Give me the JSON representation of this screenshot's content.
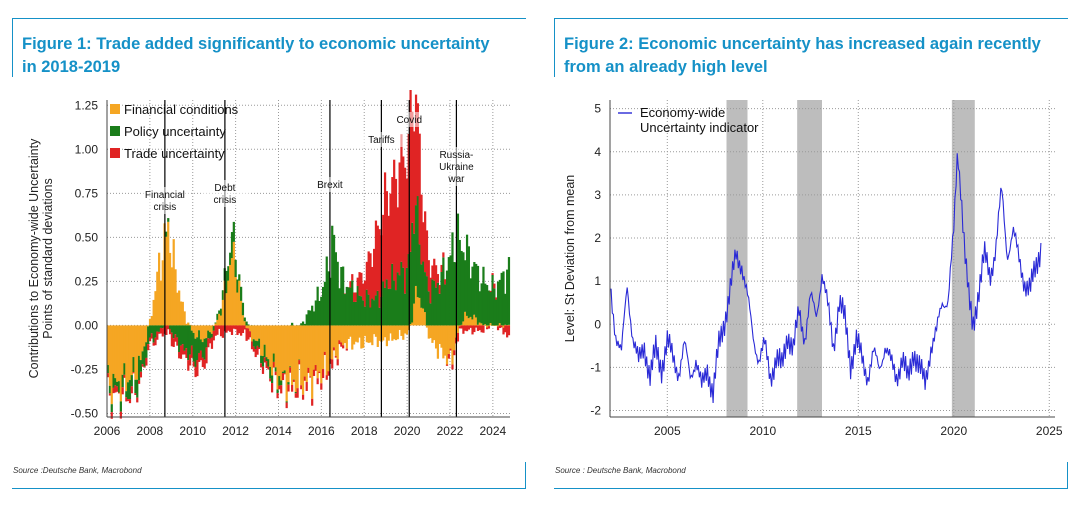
{
  "figures": [
    {
      "title": "Figure 1: Trade added significantly to economic uncertainty in 2018-2019",
      "source": "Source :Deutsche Bank, Macrobond",
      "colors": {
        "Financial conditions": "#f5a623",
        "Policy uncertainty": "#1a7d1a",
        "Trade uncertainty": "#e02424",
        "events": "#000000"
      }
    },
    {
      "title": "Figure 2: Economic uncertainty has increased again recently from an already high level",
      "source": "Source : Deutsche Bank, Macrobond",
      "colors": {
        "line": "#2a2ad6",
        "recession_band": "#bdbdbd"
      }
    }
  ],
  "chart_data": [
    {
      "type": "area",
      "stacked": true,
      "title": "",
      "xlabel": "",
      "ylabel": "Contributions to Economy-wide Uncertainty\nPoints of standard deviations",
      "xlim": [
        2006,
        2024.8
      ],
      "ylim": [
        -0.52,
        1.28
      ],
      "xticks": [
        "2006",
        "2008",
        "2010",
        "2012",
        "2014",
        "2016",
        "2018",
        "2020",
        "2022",
        "2024"
      ],
      "yticks": [
        "1.25",
        "1.00",
        "0.75",
        "0.50",
        "0.25",
        "0.00",
        "-0.25",
        "-0.50"
      ],
      "legend_position": "top-left",
      "grid": true,
      "x": [
        2006.0,
        2006.5,
        2007.0,
        2007.5,
        2008.0,
        2008.3,
        2008.6,
        2008.8,
        2009.0,
        2009.3,
        2009.6,
        2010.0,
        2010.5,
        2011.0,
        2011.3,
        2011.6,
        2011.8,
        2012.0,
        2012.3,
        2012.6,
        2013.0,
        2013.5,
        2014.0,
        2014.5,
        2015.0,
        2015.5,
        2016.0,
        2016.3,
        2016.5,
        2016.8,
        2017.0,
        2017.5,
        2018.0,
        2018.5,
        2018.8,
        2019.0,
        2019.3,
        2019.6,
        2020.0,
        2020.2,
        2020.4,
        2020.7,
        2021.0,
        2021.5,
        2022.0,
        2022.3,
        2022.6,
        2023.0,
        2023.5,
        2024.0,
        2024.3,
        2024.6
      ],
      "series": [
        {
          "name": "Financial conditions",
          "values": [
            -0.33,
            -0.33,
            -0.3,
            -0.22,
            0.05,
            0.28,
            0.45,
            0.55,
            0.4,
            0.2,
            0.05,
            -0.05,
            -0.08,
            0.0,
            0.1,
            0.28,
            0.4,
            0.3,
            0.05,
            -0.05,
            -0.1,
            -0.2,
            -0.3,
            -0.32,
            -0.32,
            -0.3,
            -0.26,
            -0.22,
            -0.18,
            -0.12,
            -0.1,
            -0.1,
            -0.1,
            -0.08,
            -0.1,
            -0.08,
            -0.08,
            -0.06,
            -0.05,
            0.05,
            0.2,
            0.1,
            -0.08,
            -0.15,
            -0.2,
            -0.05,
            0.05,
            0.05,
            0.0,
            0.0,
            0.0,
            0.0
          ]
        },
        {
          "name": "Policy uncertainty",
          "values": [
            -0.05,
            -0.05,
            -0.08,
            -0.1,
            -0.08,
            -0.05,
            0.0,
            0.02,
            -0.05,
            -0.1,
            -0.15,
            -0.15,
            -0.08,
            0.0,
            0.05,
            0.1,
            0.12,
            0.08,
            0.05,
            0.0,
            -0.05,
            -0.05,
            -0.03,
            0.0,
            0.0,
            0.1,
            0.2,
            0.35,
            0.5,
            0.3,
            0.25,
            0.18,
            0.15,
            0.15,
            0.18,
            0.25,
            0.25,
            0.3,
            0.3,
            0.55,
            0.45,
            0.25,
            0.2,
            0.25,
            0.4,
            0.5,
            0.4,
            0.3,
            0.25,
            0.2,
            0.25,
            0.3
          ]
        },
        {
          "name": "Trade uncertainty",
          "values": [
            -0.03,
            -0.03,
            -0.02,
            -0.02,
            -0.03,
            -0.03,
            -0.04,
            -0.04,
            -0.05,
            -0.05,
            -0.05,
            -0.06,
            -0.06,
            -0.05,
            -0.05,
            -0.04,
            -0.03,
            -0.04,
            -0.05,
            -0.05,
            -0.03,
            -0.03,
            -0.03,
            -0.03,
            -0.03,
            -0.03,
            -0.03,
            -0.03,
            -0.03,
            -0.02,
            -0.02,
            0.05,
            0.15,
            0.35,
            0.45,
            0.5,
            0.55,
            0.6,
            0.7,
            0.72,
            0.6,
            0.35,
            0.15,
            0.05,
            -0.03,
            -0.03,
            -0.03,
            -0.03,
            -0.03,
            0.02,
            -0.02,
            -0.05
          ]
        }
      ],
      "annotations": [
        {
          "x": 2008.7,
          "label": "Financial\ncrisis"
        },
        {
          "x": 2011.5,
          "label": "Debt\ncrisis"
        },
        {
          "x": 2016.4,
          "label": "Brexit"
        },
        {
          "x": 2018.8,
          "label": "Tariffs"
        },
        {
          "x": 2020.1,
          "label": "Covid"
        },
        {
          "x": 2022.3,
          "label": "Russia-\nUkraine\nwar"
        }
      ]
    },
    {
      "type": "line",
      "title": "",
      "xlabel": "",
      "ylabel": "Level: St Deviation from mean",
      "xlim": [
        2002,
        2025.3
      ],
      "ylim": [
        -2.15,
        5.2
      ],
      "xticks": [
        "2005",
        "2010",
        "2015",
        "2020",
        "2025"
      ],
      "yticks": [
        "5",
        "4",
        "3",
        "2",
        "1",
        "0",
        "-1",
        "-2"
      ],
      "legend_position": "top-left",
      "grid": true,
      "shaded_ranges": [
        [
          2008.1,
          2009.2
        ],
        [
          2011.8,
          2013.1
        ],
        [
          2019.9,
          2021.1
        ]
      ],
      "series": [
        {
          "name": "Economy-wide\nUncertainty indicator",
          "x": [
            2002.0,
            2002.3,
            2002.6,
            2002.9,
            2003.2,
            2003.5,
            2003.8,
            2004.1,
            2004.4,
            2004.7,
            2005.0,
            2005.3,
            2005.6,
            2005.9,
            2006.2,
            2006.5,
            2006.8,
            2007.1,
            2007.4,
            2007.7,
            2008.0,
            2008.3,
            2008.6,
            2008.9,
            2009.2,
            2009.5,
            2009.8,
            2010.1,
            2010.4,
            2010.7,
            2011.0,
            2011.3,
            2011.6,
            2011.9,
            2012.2,
            2012.5,
            2012.8,
            2013.1,
            2013.4,
            2013.7,
            2014.0,
            2014.3,
            2014.6,
            2014.9,
            2015.2,
            2015.5,
            2015.8,
            2016.1,
            2016.4,
            2016.7,
            2017.0,
            2017.3,
            2017.6,
            2017.9,
            2018.2,
            2018.5,
            2018.8,
            2019.1,
            2019.4,
            2019.7,
            2020.0,
            2020.2,
            2020.4,
            2020.6,
            2020.8,
            2021.0,
            2021.3,
            2021.6,
            2021.9,
            2022.2,
            2022.5,
            2022.8,
            2023.1,
            2023.4,
            2023.7,
            2024.0,
            2024.3,
            2024.6
          ],
          "values": [
            0.9,
            -0.2,
            -0.7,
            0.9,
            -0.3,
            -0.9,
            -0.5,
            -1.2,
            -0.6,
            -1.0,
            -0.4,
            -0.8,
            -1.1,
            -0.5,
            -1.2,
            -0.8,
            -1.5,
            -1.0,
            -1.6,
            -0.5,
            0.1,
            0.8,
            1.6,
            1.4,
            0.6,
            -0.3,
            -0.8,
            -0.5,
            -1.2,
            -0.8,
            -1.0,
            -0.2,
            -0.6,
            0.3,
            -0.3,
            0.6,
            0.2,
            1.2,
            0.4,
            -0.5,
            0.5,
            0.1,
            -0.9,
            -0.4,
            -0.8,
            -1.2,
            -0.7,
            -1.0,
            -0.5,
            -0.9,
            -1.2,
            -0.8,
            -1.3,
            -0.6,
            -1.0,
            -1.4,
            -0.5,
            -0.2,
            0.5,
            0.6,
            2.1,
            4.0,
            3.0,
            1.6,
            0.5,
            -0.1,
            0.8,
            1.6,
            1.1,
            1.8,
            3.1,
            1.6,
            2.2,
            1.5,
            1.0,
            0.8,
            1.3,
            1.9
          ]
        }
      ]
    }
  ]
}
